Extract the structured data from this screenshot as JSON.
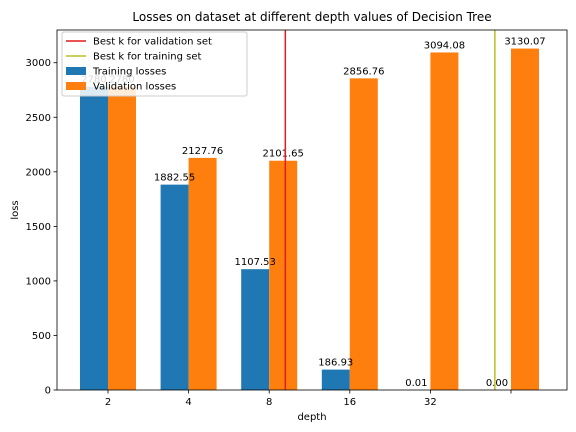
{
  "chart_data": {
    "type": "bar",
    "title": "Losses on dataset at different depth values of Decision Tree",
    "xlabel": "depth",
    "ylabel": "loss",
    "ylim": [
      0,
      3300
    ],
    "yticks": [
      0,
      500,
      1000,
      1500,
      2000,
      2500,
      3000
    ],
    "xtick_labels": [
      "2",
      "4",
      "8",
      "16",
      "32",
      ""
    ],
    "series": [
      {
        "name": "Training losses",
        "color": "#1f77b4",
        "values": [
          2780,
          1882.55,
          1107.53,
          186.93,
          0.01,
          0.0
        ],
        "labels": [
          "2780",
          "1882.55",
          "1107.53",
          "186.93",
          "0.01",
          "0.00"
        ]
      },
      {
        "name": "Validation losses",
        "color": "#ff7f0e",
        "values": [
          2780,
          2127.76,
          2101.65,
          2856.76,
          3094.08,
          3130.07
        ],
        "labels": [
          "2780",
          "2127.76",
          "2101.65",
          "2856.76",
          "3094.08",
          "3130.07"
        ]
      }
    ],
    "vlines": [
      {
        "name": "Best k for validation set",
        "color": "#e41a1c",
        "x_category_index": 2.2
      },
      {
        "name": "Best k for training set",
        "color": "#bcbd22",
        "x_category_index": 4.8
      }
    ],
    "legend_position": "top-left",
    "grid": false
  }
}
